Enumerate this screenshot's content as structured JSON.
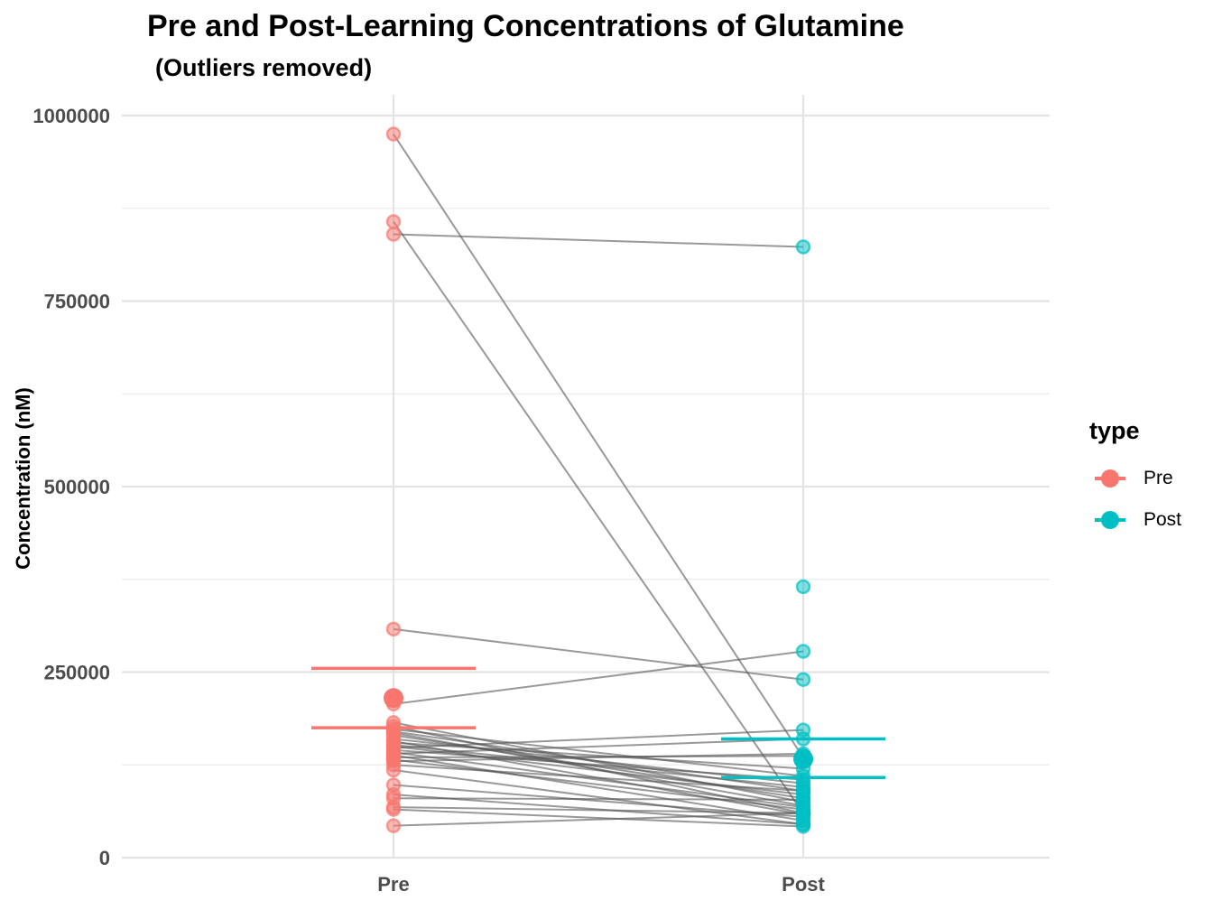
{
  "chart_data": {
    "type": "scatter",
    "title": "Pre and Post-Learning Concentrations of Glutamine",
    "subtitle": "(Outliers removed)",
    "xlabel": "",
    "ylabel": "Concentration (nM)",
    "categories": [
      "Pre",
      "Post"
    ],
    "ylim": [
      0,
      1000000
    ],
    "yticks": [
      0,
      250000,
      500000,
      750000,
      1000000
    ],
    "ytick_labels": [
      "0",
      "250000",
      "500000",
      "750000",
      "1000000"
    ],
    "grid": true,
    "legend": {
      "title": "type",
      "position": "right",
      "entries": [
        "Pre",
        "Post"
      ]
    },
    "colors": {
      "Pre": "#F8766D",
      "Post": "#00BFC4",
      "line": "#555555"
    },
    "pairs": [
      [
        975000,
        135000
      ],
      [
        857000,
        60000
      ],
      [
        840000,
        823000
      ],
      [
        308000,
        240000
      ],
      [
        207000,
        278000
      ],
      [
        182000,
        75000
      ],
      [
        177000,
        60000
      ],
      [
        173000,
        110000
      ],
      [
        170000,
        90000
      ],
      [
        168000,
        70000
      ],
      [
        165000,
        80000
      ],
      [
        160000,
        100000
      ],
      [
        157000,
        58000
      ],
      [
        155000,
        120000
      ],
      [
        152000,
        95000
      ],
      [
        150000,
        85000
      ],
      [
        148000,
        172000
      ],
      [
        145000,
        105000
      ],
      [
        142000,
        68000
      ],
      [
        140000,
        160000
      ],
      [
        138000,
        50000
      ],
      [
        135000,
        137000
      ],
      [
        132000,
        65000
      ],
      [
        130000,
        140000
      ],
      [
        125000,
        90000
      ],
      [
        118000,
        45000
      ],
      [
        98000,
        55000
      ],
      [
        85000,
        45000
      ],
      [
        80000,
        78000
      ],
      [
        68000,
        60000
      ],
      [
        65000,
        42000
      ],
      [
        43000,
        60000
      ]
    ],
    "extra_post_points": [
      365000
    ],
    "summary": [
      {
        "name": "Pre",
        "mean": 215000,
        "ci": [
          175000,
          255000
        ]
      },
      {
        "name": "Post",
        "mean": 133000,
        "ci": [
          108000,
          160000
        ]
      }
    ]
  }
}
